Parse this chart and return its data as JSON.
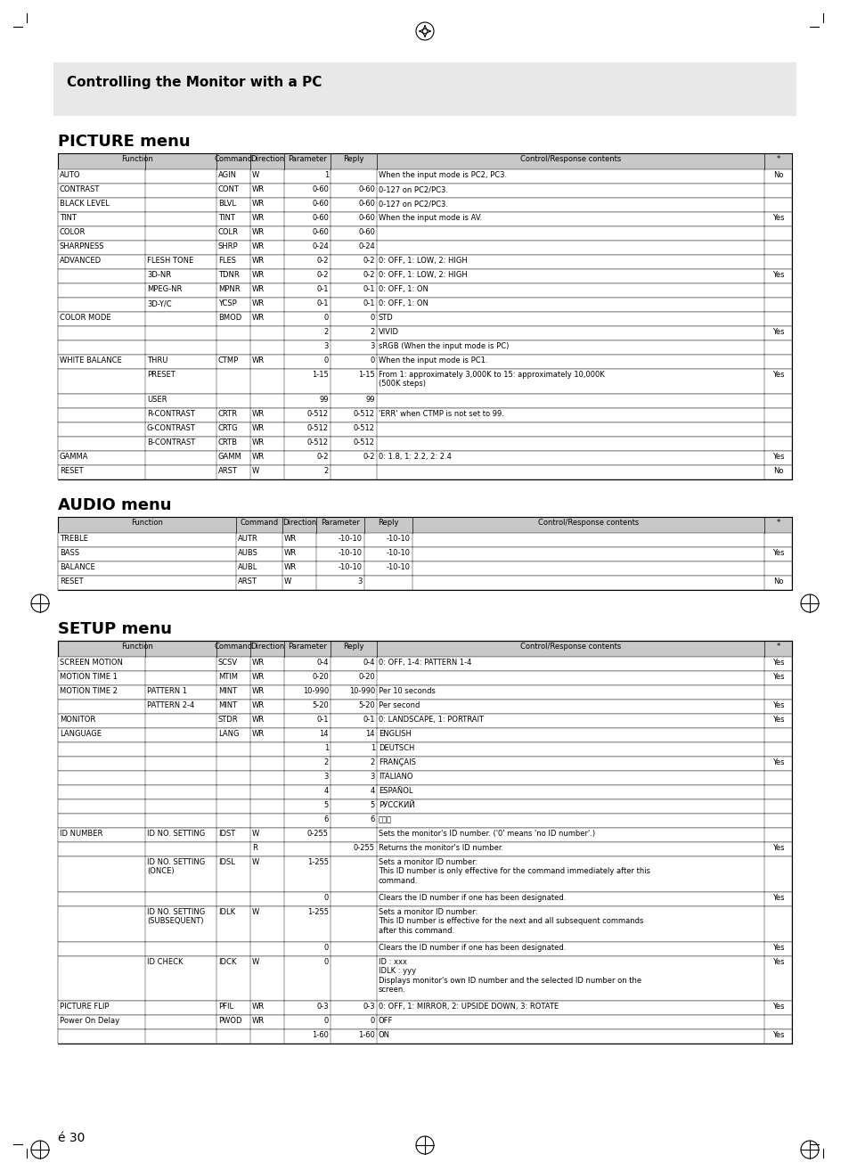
{
  "title_banner": "Controlling the Monitor with a PC",
  "page_number": "30",
  "picture_menu_title": "PICTURE menu",
  "audio_menu_title": "AUDIO menu",
  "setup_menu_title": "SETUP menu",
  "col_headers": [
    "Function",
    "Command",
    "Direction",
    "Parameter",
    "Reply",
    "Control/Response contents",
    "*"
  ],
  "picture_rows": [
    [
      "AUTO",
      "",
      "AGIN",
      "W",
      "1",
      "",
      "When the input mode is PC2, PC3.",
      "No"
    ],
    [
      "CONTRAST",
      "",
      "CONT",
      "WR",
      "0-60",
      "0-60",
      "0-127 on PC2/PC3.",
      ""
    ],
    [
      "BLACK LEVEL",
      "",
      "BLVL",
      "WR",
      "0-60",
      "0-60",
      "0-127 on PC2/PC3.",
      ""
    ],
    [
      "TINT",
      "",
      "TINT",
      "WR",
      "0-60",
      "0-60",
      "When the input mode is AV.",
      "Yes"
    ],
    [
      "COLOR",
      "",
      "COLR",
      "WR",
      "0-60",
      "0-60",
      "",
      ""
    ],
    [
      "SHARPNESS",
      "",
      "SHRP",
      "WR",
      "0-24",
      "0-24",
      "",
      ""
    ],
    [
      "ADVANCED",
      "FLESH TONE",
      "FLES",
      "WR",
      "0-2",
      "0-2",
      "0: OFF, 1: LOW, 2: HIGH",
      ""
    ],
    [
      "",
      "3D-NR",
      "TDNR",
      "WR",
      "0-2",
      "0-2",
      "0: OFF, 1: LOW, 2: HIGH",
      "Yes"
    ],
    [
      "",
      "MPEG-NR",
      "MPNR",
      "WR",
      "0-1",
      "0-1",
      "0: OFF, 1: ON",
      ""
    ],
    [
      "",
      "3D-Y/C",
      "YCSP",
      "WR",
      "0-1",
      "0-1",
      "0: OFF, 1: ON",
      ""
    ],
    [
      "COLOR MODE",
      "",
      "BMOD",
      "WR",
      "0",
      "0",
      "STD",
      ""
    ],
    [
      "",
      "",
      "",
      "",
      "2",
      "2",
      "VIVID",
      "Yes"
    ],
    [
      "",
      "",
      "",
      "",
      "3",
      "3",
      "sRGB (When the input mode is PC)",
      ""
    ],
    [
      "WHITE BALANCE",
      "THRU",
      "CTMP",
      "WR",
      "0",
      "0",
      "When the input mode is PC1.",
      ""
    ],
    [
      "",
      "PRESET",
      "",
      "",
      "1-15",
      "1-15",
      "From 1: approximately 3,000K to 15: approximately 10,000K\n(500K steps)",
      "Yes"
    ],
    [
      "",
      "USER",
      "",
      "",
      "99",
      "99",
      "",
      ""
    ],
    [
      "",
      "R-CONTRAST",
      "CRTR",
      "WR",
      "0-512",
      "0-512",
      "'ERR' when CTMP is not set to 99.",
      ""
    ],
    [
      "",
      "G-CONTRAST",
      "CRTG",
      "WR",
      "0-512",
      "0-512",
      "",
      ""
    ],
    [
      "",
      "B-CONTRAST",
      "CRTB",
      "WR",
      "0-512",
      "0-512",
      "",
      ""
    ],
    [
      "GAMMA",
      "",
      "GAMM",
      "WR",
      "0-2",
      "0-2",
      "0: 1.8, 1: 2.2, 2: 2.4",
      "Yes"
    ],
    [
      "RESET",
      "",
      "ARST",
      "W",
      "2",
      "",
      "",
      "No"
    ]
  ],
  "audio_rows": [
    [
      "TREBLE",
      "AUTR",
      "WR",
      "-10-10",
      "-10-10",
      "",
      ""
    ],
    [
      "BASS",
      "AUBS",
      "WR",
      "-10-10",
      "-10-10",
      "",
      "Yes"
    ],
    [
      "BALANCE",
      "AUBL",
      "WR",
      "-10-10",
      "-10-10",
      "",
      ""
    ],
    [
      "RESET",
      "ARST",
      "W",
      "3",
      "",
      "",
      "No"
    ]
  ],
  "setup_rows": [
    [
      "SCREEN MOTION",
      "",
      "SCSV",
      "WR",
      "0-4",
      "0-4",
      "0: OFF, 1-4: PATTERN 1-4",
      "Yes"
    ],
    [
      "MOTION TIME 1",
      "",
      "MTIM",
      "WR",
      "0-20",
      "0-20",
      "",
      "Yes"
    ],
    [
      "MOTION TIME 2",
      "PATTERN 1",
      "MINT",
      "WR",
      "10-990",
      "10-990",
      "Per 10 seconds",
      ""
    ],
    [
      "",
      "PATTERN 2-4",
      "MINT",
      "WR",
      "5-20",
      "5-20",
      "Per second",
      "Yes"
    ],
    [
      "MONITOR",
      "",
      "STDR",
      "WR",
      "0-1",
      "0-1",
      "0: LANDSCAPE, 1: PORTRAIT",
      "Yes"
    ],
    [
      "LANGUAGE",
      "",
      "LANG",
      "WR",
      "14",
      "14",
      "ENGLISH",
      ""
    ],
    [
      "",
      "",
      "",
      "",
      "1",
      "1",
      "DEUTSCH",
      ""
    ],
    [
      "",
      "",
      "",
      "",
      "2",
      "2",
      "FRANÇAIS",
      "Yes"
    ],
    [
      "",
      "",
      "",
      "",
      "3",
      "3",
      "ITALIANO",
      ""
    ],
    [
      "",
      "",
      "",
      "",
      "4",
      "4",
      "ESPAÑOL",
      ""
    ],
    [
      "",
      "",
      "",
      "",
      "5",
      "5",
      "РУССКИЙ",
      ""
    ],
    [
      "",
      "",
      "",
      "",
      "6",
      "6",
      "日本語",
      ""
    ],
    [
      "ID NUMBER",
      "ID NO. SETTING",
      "IDST",
      "W",
      "0-255",
      "",
      "Sets the monitor's ID number. ('0' means 'no ID number'.)",
      ""
    ],
    [
      "",
      "",
      "",
      "R",
      "",
      "0-255",
      "Returns the monitor's ID number.",
      "Yes"
    ],
    [
      "",
      "ID NO. SETTING\n(ONCE)",
      "IDSL",
      "W",
      "1-255",
      "",
      "Sets a monitor ID number:\nThis ID number is only effective for the command immediately after this\ncommand.",
      ""
    ],
    [
      "",
      "",
      "",
      "",
      "0",
      "",
      "Clears the ID number if one has been designated.",
      "Yes"
    ],
    [
      "",
      "ID NO. SETTING\n(SUBSEQUENT)",
      "IDLK",
      "W",
      "1-255",
      "",
      "Sets a monitor ID number:\nThis ID number is effective for the next and all subsequent commands\nafter this command.",
      ""
    ],
    [
      "",
      "",
      "",
      "",
      "0",
      "",
      "Clears the ID number if one has been designated.",
      "Yes"
    ],
    [
      "",
      "ID CHECK",
      "IDCK",
      "W",
      "0",
      "",
      "ID : xxx\nIDLK : yyy\nDisplays monitor's own ID number and the selected ID number on the\nscreen.",
      "Yes"
    ],
    [
      "PICTURE FLIP",
      "",
      "PFIL",
      "WR",
      "0-3",
      "0-3",
      "0: OFF, 1: MIRROR, 2: UPSIDE DOWN, 3: ROTATE",
      "Yes"
    ],
    [
      "Power On Delay",
      "",
      "PWOD",
      "WR",
      "0",
      "0",
      "OFF",
      ""
    ],
    [
      "",
      "",
      "",
      "",
      "1-60",
      "1-60",
      "ON",
      "Yes"
    ]
  ],
  "bg_color": "#f0f0f0",
  "header_bg": "#d8d8d8",
  "table_border": "#000000",
  "text_color": "#000000"
}
